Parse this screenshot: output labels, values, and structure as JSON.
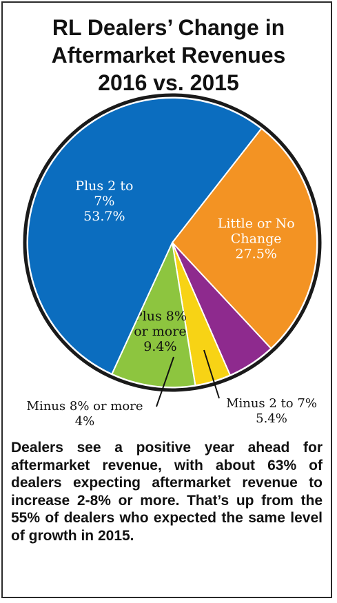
{
  "title_lines": [
    "RL Dealers’ Change in",
    "Aftermarket Revenues",
    "2016 vs. 2015"
  ],
  "chart_data": {
    "type": "pie",
    "slices": [
      {
        "label_lines": [
          "Little or No",
          "Change"
        ],
        "pct_text": "27.5%",
        "value": 27.5,
        "color": "#F39323",
        "text_color": "#ffffff"
      },
      {
        "label_lines": [
          "Minus 2 to 7%"
        ],
        "pct_text": "5.4%",
        "value": 5.4,
        "color": "#8E2A8E",
        "text_color": "#111111"
      },
      {
        "label_lines": [
          "Minus 8% or more"
        ],
        "pct_text": "4%",
        "value": 4,
        "color": "#F7D315",
        "text_color": "#111111"
      },
      {
        "label_lines": [
          "Plus 8%",
          "or more"
        ],
        "pct_text": "9.4%",
        "value": 9.4,
        "color": "#8DC53F",
        "text_color": "#111111"
      },
      {
        "label_lines": [
          "Plus 2 to",
          "7%"
        ],
        "pct_text": "53.7%",
        "value": 53.7,
        "color": "#0B6DBF",
        "text_color": "#ffffff"
      }
    ],
    "start_angle_deg": 38,
    "border_color": "#1a1a1a"
  },
  "caption": "Dealers see a positive year ahead for aftermarket revenue, with about 63% of dealers expecting aftermarket revenue to increase 2-8% or more. That’s up from the 55% of dealers who expected the same level of growth in 2015."
}
